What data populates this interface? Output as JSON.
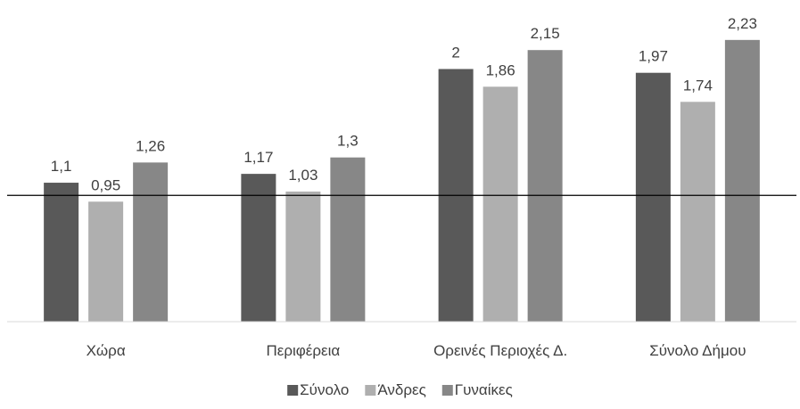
{
  "chart_data": {
    "type": "bar",
    "categories": [
      "Χώρα",
      "Περιφέρεια",
      "Ορεινές Περιοχές Δ.",
      "Σύνολο Δήμου"
    ],
    "series": [
      {
        "name": "Σύνολο",
        "values": [
          1.1,
          1.17,
          2,
          1.97
        ],
        "labels": [
          "1,1",
          "1,17",
          "2",
          "1,97"
        ],
        "color": "#595959"
      },
      {
        "name": "Άνδρες",
        "values": [
          0.95,
          1.03,
          1.86,
          1.74
        ],
        "labels": [
          "0,95",
          "1,03",
          "1,86",
          "1,74"
        ],
        "color": "#afafaf"
      },
      {
        "name": "Γυναίκες",
        "values": [
          1.26,
          1.3,
          2.15,
          2.23
        ],
        "labels": [
          "1,26",
          "1,3",
          "2,15",
          "2,23"
        ],
        "color": "#878787"
      }
    ],
    "reference_line": 1,
    "ylim": [
      0,
      2.37
    ],
    "legend_position": "bottom",
    "grid": false
  }
}
